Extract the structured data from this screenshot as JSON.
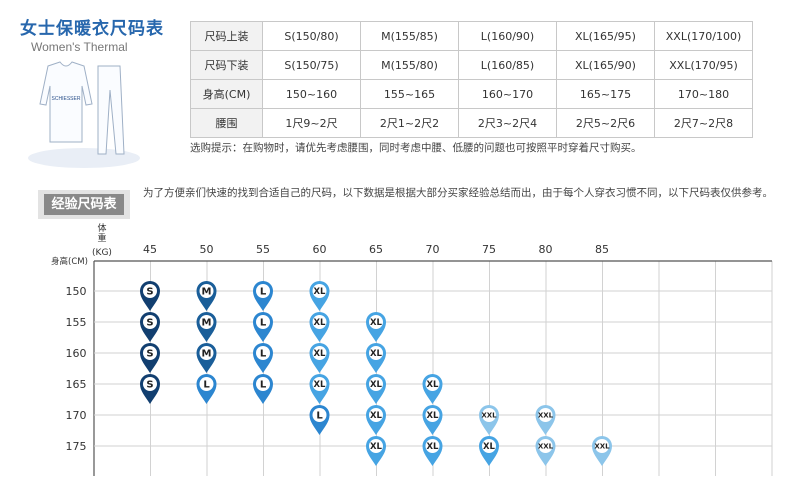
{
  "header": {
    "title_cn": "女士保暖衣尺码表",
    "title_en": "Women's Thermal"
  },
  "figure": {
    "shirt_text": "SCHIESSER"
  },
  "size_table": {
    "rows": [
      {
        "label": "尺码上装",
        "cells": [
          "S(150/80)",
          "M(155/85)",
          "L(160/90)",
          "XL(165/95)",
          "XXL(170/100)"
        ]
      },
      {
        "label": "尺码下装",
        "cells": [
          "S(150/75)",
          "M(155/80)",
          "L(160/85)",
          "XL(165/90)",
          "XXL(170/95)"
        ]
      },
      {
        "label": "身高(CM)",
        "cells": [
          "150~160",
          "155~165",
          "160~170",
          "165~175",
          "170~180"
        ]
      },
      {
        "label": "腰围",
        "cells": [
          "1尺9~2尺",
          "2尺1~2尺2",
          "2尺3~2尺4",
          "2尺5~2尺6",
          "2尺7~2尺8"
        ]
      }
    ]
  },
  "tip": "选购提示：在购物时，请优先考虑腰围，同时考虑中腰、低腰的问题也可按照平时穿着尺寸购买。",
  "experience": {
    "badge": "经验尺码表",
    "note": "为了方便亲们快速的找到合适自己的尺码，以下数据是根据大部分买家经验总结而出，由于每个人穿衣习惯不同，以下尺码表仅供参考。"
  },
  "chart_data": {
    "type": "table",
    "weight_label_chars": [
      "体",
      "重"
    ],
    "weight_unit": "(KG)",
    "height_label": "身高(CM)",
    "weights": [
      "45",
      "50",
      "55",
      "60",
      "65",
      "70",
      "75",
      "80",
      "85"
    ],
    "heights": [
      "150",
      "155",
      "160",
      "165",
      "170",
      "175"
    ],
    "cells": [
      {
        "weight": "45",
        "height": "150",
        "size": "S"
      },
      {
        "weight": "45",
        "height": "155",
        "size": "S"
      },
      {
        "weight": "45",
        "height": "160",
        "size": "S"
      },
      {
        "weight": "45",
        "height": "165",
        "size": "S"
      },
      {
        "weight": "50",
        "height": "150",
        "size": "M"
      },
      {
        "weight": "50",
        "height": "155",
        "size": "M"
      },
      {
        "weight": "50",
        "height": "160",
        "size": "M"
      },
      {
        "weight": "50",
        "height": "165",
        "size": "L"
      },
      {
        "weight": "55",
        "height": "150",
        "size": "L"
      },
      {
        "weight": "55",
        "height": "155",
        "size": "L"
      },
      {
        "weight": "55",
        "height": "160",
        "size": "L"
      },
      {
        "weight": "55",
        "height": "165",
        "size": "L"
      },
      {
        "weight": "60",
        "height": "150",
        "size": "XL"
      },
      {
        "weight": "60",
        "height": "155",
        "size": "XL"
      },
      {
        "weight": "60",
        "height": "160",
        "size": "XL"
      },
      {
        "weight": "60",
        "height": "165",
        "size": "XL"
      },
      {
        "weight": "60",
        "height": "170",
        "size": "L"
      },
      {
        "weight": "65",
        "height": "155",
        "size": "XL"
      },
      {
        "weight": "65",
        "height": "160",
        "size": "XL"
      },
      {
        "weight": "65",
        "height": "165",
        "size": "XL"
      },
      {
        "weight": "65",
        "height": "170",
        "size": "XL"
      },
      {
        "weight": "65",
        "height": "175",
        "size": "XL"
      },
      {
        "weight": "70",
        "height": "165",
        "size": "XL"
      },
      {
        "weight": "70",
        "height": "170",
        "size": "XL"
      },
      {
        "weight": "70",
        "height": "175",
        "size": "XL"
      },
      {
        "weight": "75",
        "height": "170",
        "size": "XXL"
      },
      {
        "weight": "75",
        "height": "175",
        "size": "XL"
      },
      {
        "weight": "80",
        "height": "170",
        "size": "XXL"
      },
      {
        "weight": "80",
        "height": "175",
        "size": "XXL"
      },
      {
        "weight": "85",
        "height": "175",
        "size": "XXL"
      }
    ],
    "size_colors": {
      "S": "#123f70",
      "M": "#1a5e99",
      "L": "#2c86d0",
      "XL": "#46a4e3",
      "XXL": "#8cc5ea"
    }
  }
}
